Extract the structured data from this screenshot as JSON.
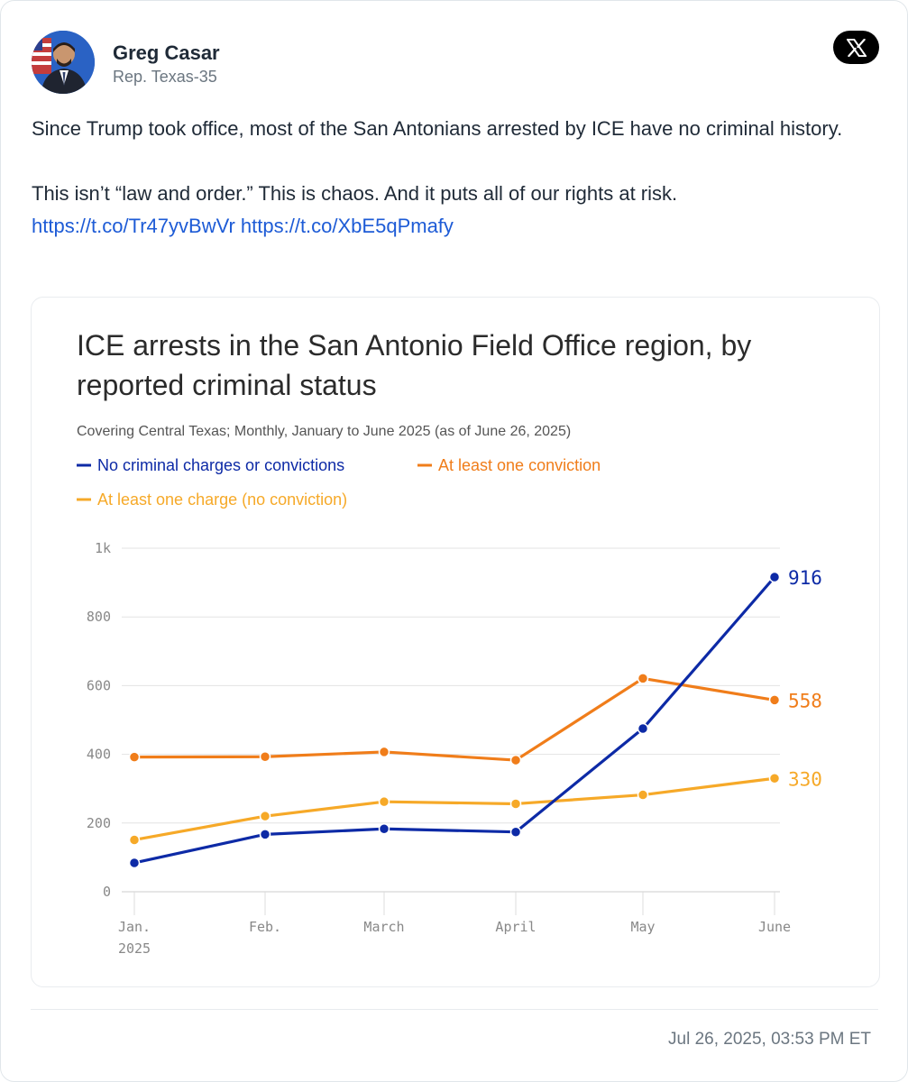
{
  "author": {
    "name": "Greg Casar",
    "handle": "Rep. Texas-35",
    "avatar_icon": "profile-photo"
  },
  "platform_icon": "x-logo-icon",
  "tweet": {
    "line1": "Since Trump took office, most of the San Antonians arrested by ICE have no criminal history.",
    "line2": "This isn’t “law and order.” This is chaos. And it puts all of our rights at risk.",
    "link1": "https://t.co/Tr47yvBwVr",
    "link2": "https://t.co/XbE5qPmafy"
  },
  "timestamp": "Jul 26, 2025, 03:53 PM ET",
  "chart_data": {
    "type": "line",
    "title_line1": "ICE arrests in the San Antonio Field Office region, by",
    "title_line2": "reported criminal status",
    "subtitle": "Covering Central Texas; Monthly, January to June 2025 (as of June 26, 2025)",
    "categories": [
      "Jan.",
      "Feb.",
      "March",
      "April",
      "May",
      "June"
    ],
    "category_sublabel_first": "2025",
    "ylim": [
      0,
      1000
    ],
    "yticks": [
      0,
      200,
      400,
      600,
      800,
      1000
    ],
    "ytick_labels": [
      "0",
      "200",
      "400",
      "600",
      "800",
      "1k"
    ],
    "grid": true,
    "legend_placement": "top-left",
    "series": [
      {
        "name": "No criminal charges or convictions",
        "color": "#0d2aa6",
        "values": [
          84,
          167,
          183,
          174,
          475,
          916
        ],
        "end_label": "916"
      },
      {
        "name": "At least one conviction",
        "color": "#f07d1a",
        "values": [
          392,
          393,
          407,
          383,
          621,
          558
        ],
        "end_label": "558"
      },
      {
        "name": "At least one charge (no conviction)",
        "color": "#f6a928",
        "values": [
          151,
          220,
          262,
          256,
          282,
          330
        ],
        "end_label": "330"
      }
    ]
  }
}
